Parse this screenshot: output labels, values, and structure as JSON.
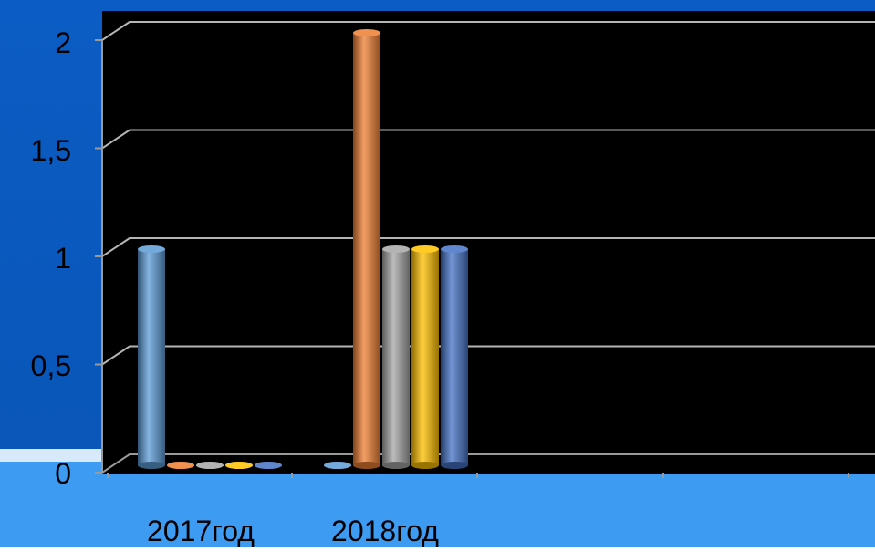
{
  "chart_data": {
    "type": "bar",
    "categories": [
      "2017год",
      "2018год"
    ],
    "series": [
      {
        "values": [
          1,
          0
        ],
        "color": "#5B9BD5"
      },
      {
        "values": [
          0,
          2
        ],
        "color": "#ED7D31"
      },
      {
        "values": [
          0,
          1
        ],
        "color": "#A5A5A5"
      },
      {
        "values": [
          0,
          1
        ],
        "color": "#FFC000"
      },
      {
        "values": [
          0,
          1
        ],
        "color": "#4472C4"
      }
    ],
    "yticks": [
      "0",
      "0,5",
      "1",
      "1,5",
      "2"
    ],
    "ylim": [
      0,
      2
    ],
    "grid": true,
    "style": "3d-cylinder",
    "plot_background": "#000000"
  },
  "colors": {
    "page_background_top": "#0A5BC2",
    "page_background_bottom": "#3E9BF2"
  }
}
